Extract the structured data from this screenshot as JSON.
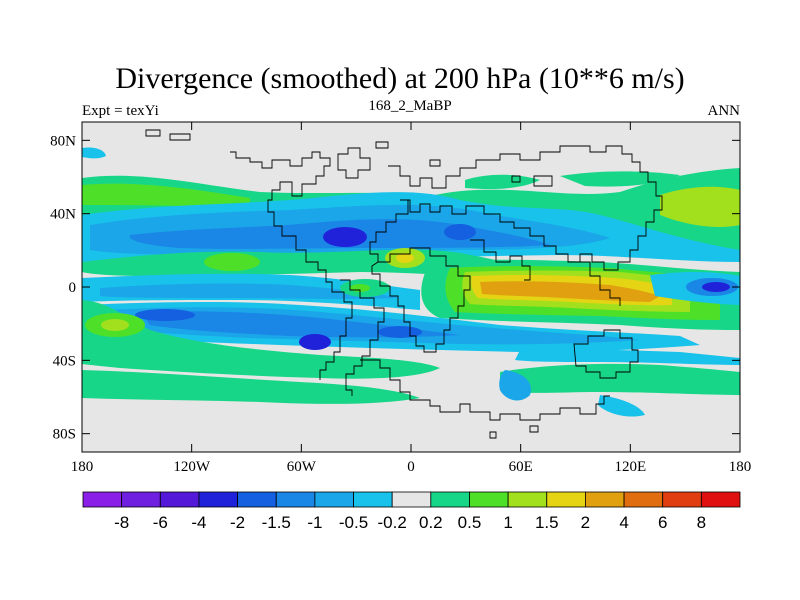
{
  "title": "Divergence (smoothed) at 200 hPa (10**6 m/s)",
  "subtitle_left": "Expt = texYi",
  "subtitle_center": "168_2_MaBP",
  "subtitle_right": "ANN",
  "map": {
    "lon_range": [
      -180,
      180
    ],
    "lat_range": [
      -90,
      90
    ],
    "x_ticks": [
      {
        "value": -180,
        "label": "180"
      },
      {
        "value": -120,
        "label": "120W"
      },
      {
        "value": -60,
        "label": "60W"
      },
      {
        "value": 0,
        "label": "0"
      },
      {
        "value": 60,
        "label": "60E"
      },
      {
        "value": 120,
        "label": "120E"
      },
      {
        "value": 180,
        "label": "180"
      }
    ],
    "y_ticks": [
      {
        "value": 80,
        "label": "80N"
      },
      {
        "value": 40,
        "label": "40N"
      },
      {
        "value": 0,
        "label": "0"
      },
      {
        "value": -40,
        "label": "40S"
      },
      {
        "value": -80,
        "label": "80S"
      }
    ],
    "background_color": "#e6e6e6"
  },
  "colorbar": {
    "labels": [
      "-8",
      "-6",
      "-4",
      "-2",
      "-1.5",
      "-1",
      "-0.5",
      "-0.2",
      "0.2",
      "0.5",
      "1",
      "1.5",
      "2",
      "4",
      "6",
      "8"
    ],
    "colors": [
      "#8a1fe8",
      "#6e1fe0",
      "#5418d8",
      "#1f22d8",
      "#1460e0",
      "#1a86e6",
      "#1aa6e8",
      "#18c2ea",
      "#e6e6e6",
      "#18d688",
      "#4ee028",
      "#a2e01e",
      "#e4d414",
      "#e0a010",
      "#e06e10",
      "#e03e10",
      "#e01010"
    ]
  }
}
